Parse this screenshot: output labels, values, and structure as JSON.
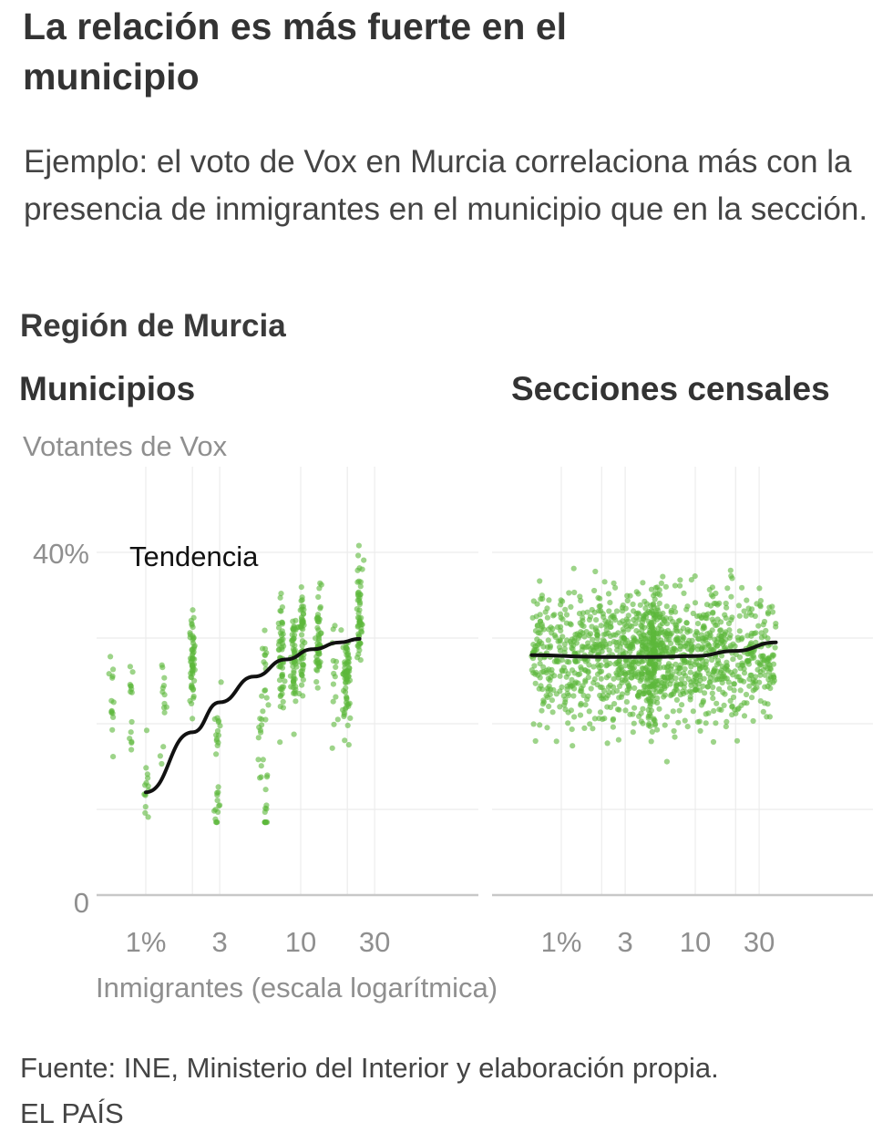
{
  "header": {
    "title": "La relación es más fuerte en el municipio",
    "subtitle": "Ejemplo: el voto de Vox en Murcia correlaciona más con la presencia de inmigrantes en el municipio que en la sección.",
    "region": "Región de Murcia"
  },
  "footer": {
    "source": "Fuente: INE, Ministerio del Interior y elaboración propia.",
    "brand": "EL PAÍS"
  },
  "colors": {
    "points": "#5cb83a",
    "trend": "#111111",
    "grid": "#ececec",
    "axis": "#c8c8c8"
  },
  "chart_data": [
    {
      "type": "scatter",
      "title": "Municipios",
      "ylabel": "Votantes de Vox",
      "xlabel": "Inmigrantes (escala logarítmica)",
      "x_scale": "log",
      "x_ticks": [
        1,
        3,
        10,
        30
      ],
      "x_tick_labels": [
        "1%",
        "3",
        "10",
        "30"
      ],
      "y_ticks": [
        0,
        40
      ],
      "y_tick_labels": [
        "0",
        "40%"
      ],
      "xlim": [
        0.6,
        40
      ],
      "ylim": [
        0,
        50
      ],
      "grid": true,
      "trend_label": "Tendencia",
      "trend": [
        {
          "x": 1.0,
          "y": 12
        },
        {
          "x": 2.0,
          "y": 19
        },
        {
          "x": 3.0,
          "y": 22.5
        },
        {
          "x": 5.0,
          "y": 25.5
        },
        {
          "x": 8.0,
          "y": 27.5
        },
        {
          "x": 12.0,
          "y": 28.7
        },
        {
          "x": 18.0,
          "y": 29.5
        },
        {
          "x": 24.0,
          "y": 29.9
        }
      ],
      "clusters": [
        {
          "x": 0.6,
          "y": 22.2
        },
        {
          "x": 0.8,
          "y": 22.4
        },
        {
          "x": 1.0,
          "y": 12.5
        },
        {
          "x": 1.3,
          "y": 23.4
        },
        {
          "x": 2.0,
          "y": 27.5
        },
        {
          "x": 2.9,
          "y": 18
        },
        {
          "x": 2.9,
          "y": 10
        },
        {
          "x": 5.5,
          "y": 18
        },
        {
          "x": 5.9,
          "y": 25
        },
        {
          "x": 6.0,
          "y": 9.1
        },
        {
          "x": 7.5,
          "y": 28
        },
        {
          "x": 9.0,
          "y": 28
        },
        {
          "x": 10.2,
          "y": 30
        },
        {
          "x": 13.0,
          "y": 30
        },
        {
          "x": 16.5,
          "y": 25
        },
        {
          "x": 19.0,
          "y": 25
        },
        {
          "x": 20.0,
          "y": 26
        },
        {
          "x": 24.0,
          "y": 33
        }
      ]
    },
    {
      "type": "scatter",
      "title": "Secciones censales",
      "x_scale": "log",
      "x_ticks": [
        1,
        3,
        10,
        30
      ],
      "x_tick_labels": [
        "1%",
        "3",
        "10",
        "30"
      ],
      "xlim": [
        0.6,
        40
      ],
      "ylim": [
        0,
        50
      ],
      "grid": true,
      "trend": [
        {
          "x": 0.6,
          "y": 28
        },
        {
          "x": 2.0,
          "y": 27.8
        },
        {
          "x": 5.0,
          "y": 27.8
        },
        {
          "x": 10.0,
          "y": 27.9
        },
        {
          "x": 20.0,
          "y": 28.5
        },
        {
          "x": 40.0,
          "y": 29.5
        }
      ],
      "cloud": {
        "n": 1400,
        "x_range": [
          0.6,
          40
        ],
        "y_mean": 28,
        "y_sd": 5.5,
        "y_min": 9,
        "y_max": 47
      }
    }
  ]
}
